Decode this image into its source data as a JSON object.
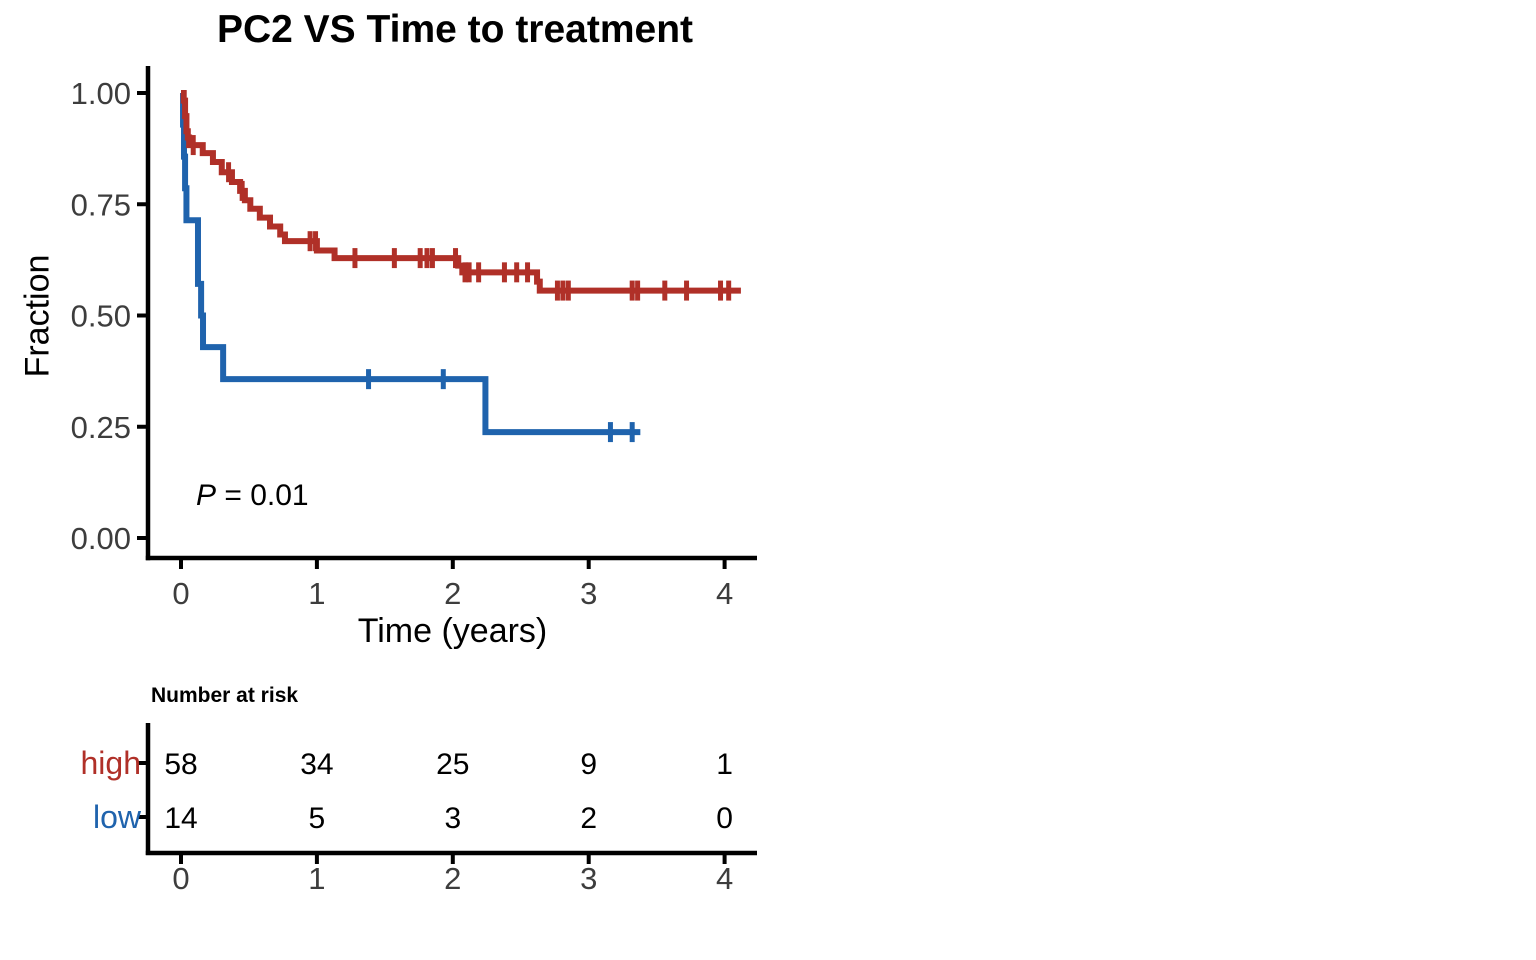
{
  "title": "PC2 VS Time to treatment",
  "p_value": {
    "italic_part": "P",
    "rest_part": " = 0.01"
  },
  "colors": {
    "high": "#b03028",
    "low": "#1f63ad",
    "axis": "#000000",
    "tick_text": "#3d3d3d"
  },
  "chart_data": {
    "type": "line",
    "subtype": "kaplan-meier-step-survival",
    "title": "PC2 VS Time to treatment",
    "xlabel": "Time (years)",
    "ylabel": "Fraction",
    "xlim": [
      0,
      4.25
    ],
    "ylim": [
      0,
      1
    ],
    "x_ticks": [
      0,
      1,
      2,
      3,
      4
    ],
    "x_tick_labels": [
      "0",
      "1",
      "2",
      "3",
      "4"
    ],
    "y_ticks": [
      1.0,
      0.75,
      0.5,
      0.25,
      0.0
    ],
    "y_tick_labels": [
      "1.00",
      "0.75",
      "0.50",
      "0.25",
      "0.00"
    ],
    "grid": false,
    "legend_position": "none",
    "annotation": "P = 0.01",
    "series": [
      {
        "name": "low",
        "color": "#1f63ad",
        "steps": [
          [
            0,
            1.0
          ],
          [
            0.015,
            0.929
          ],
          [
            0.022,
            0.857
          ],
          [
            0.03,
            0.786
          ],
          [
            0.04,
            0.714
          ],
          [
            0.125,
            0.571
          ],
          [
            0.148,
            0.5
          ],
          [
            0.162,
            0.429
          ],
          [
            0.31,
            0.357
          ],
          [
            2.24,
            0.238
          ]
        ],
        "end_time": 3.38,
        "censors": [
          [
            1.38,
            0.357
          ],
          [
            1.93,
            0.357
          ],
          [
            3.16,
            0.238
          ],
          [
            3.32,
            0.238
          ]
        ]
      },
      {
        "name": "high",
        "color": "#b03028",
        "steps": [
          [
            0,
            1.0
          ],
          [
            0.02,
            0.983
          ],
          [
            0.03,
            0.948
          ],
          [
            0.04,
            0.914
          ],
          [
            0.05,
            0.9
          ],
          [
            0.06,
            0.883
          ],
          [
            0.16,
            0.865
          ],
          [
            0.235,
            0.845
          ],
          [
            0.3,
            0.822
          ],
          [
            0.375,
            0.8
          ],
          [
            0.435,
            0.78
          ],
          [
            0.47,
            0.759
          ],
          [
            0.51,
            0.74
          ],
          [
            0.58,
            0.72
          ],
          [
            0.655,
            0.7
          ],
          [
            0.73,
            0.682
          ],
          [
            0.765,
            0.667
          ],
          [
            1.0,
            0.646
          ],
          [
            1.13,
            0.629
          ],
          [
            2.04,
            0.612
          ],
          [
            2.07,
            0.597
          ],
          [
            2.62,
            0.576
          ],
          [
            2.64,
            0.556
          ]
        ],
        "end_time": 4.12,
        "censors": [
          [
            0.09,
            0.883
          ],
          [
            0.35,
            0.822
          ],
          [
            0.45,
            0.78
          ],
          [
            0.95,
            0.667
          ],
          [
            0.99,
            0.667
          ],
          [
            1.28,
            0.629
          ],
          [
            1.57,
            0.629
          ],
          [
            1.76,
            0.629
          ],
          [
            1.81,
            0.629
          ],
          [
            1.85,
            0.629
          ],
          [
            2.02,
            0.629
          ],
          [
            2.09,
            0.597
          ],
          [
            2.12,
            0.597
          ],
          [
            2.19,
            0.597
          ],
          [
            2.38,
            0.597
          ],
          [
            2.47,
            0.597
          ],
          [
            2.55,
            0.597
          ],
          [
            2.77,
            0.556
          ],
          [
            2.81,
            0.556
          ],
          [
            2.85,
            0.556
          ],
          [
            3.32,
            0.556
          ],
          [
            3.36,
            0.556
          ],
          [
            3.56,
            0.556
          ],
          [
            3.72,
            0.556
          ],
          [
            3.97,
            0.556
          ],
          [
            4.03,
            0.556
          ]
        ]
      }
    ],
    "risk_table": {
      "header": "Number at risk",
      "time_points": [
        0,
        1,
        2,
        3,
        4
      ],
      "time_tick_labels": [
        "0",
        "1",
        "2",
        "3",
        "4"
      ],
      "rows": [
        {
          "label": "high",
          "color": "#b03028",
          "counts": [
            "58",
            "34",
            "25",
            "9",
            "1"
          ]
        },
        {
          "label": "low",
          "color": "#1f63ad",
          "counts": [
            "14",
            "5",
            "3",
            "2",
            "0"
          ]
        }
      ]
    }
  }
}
